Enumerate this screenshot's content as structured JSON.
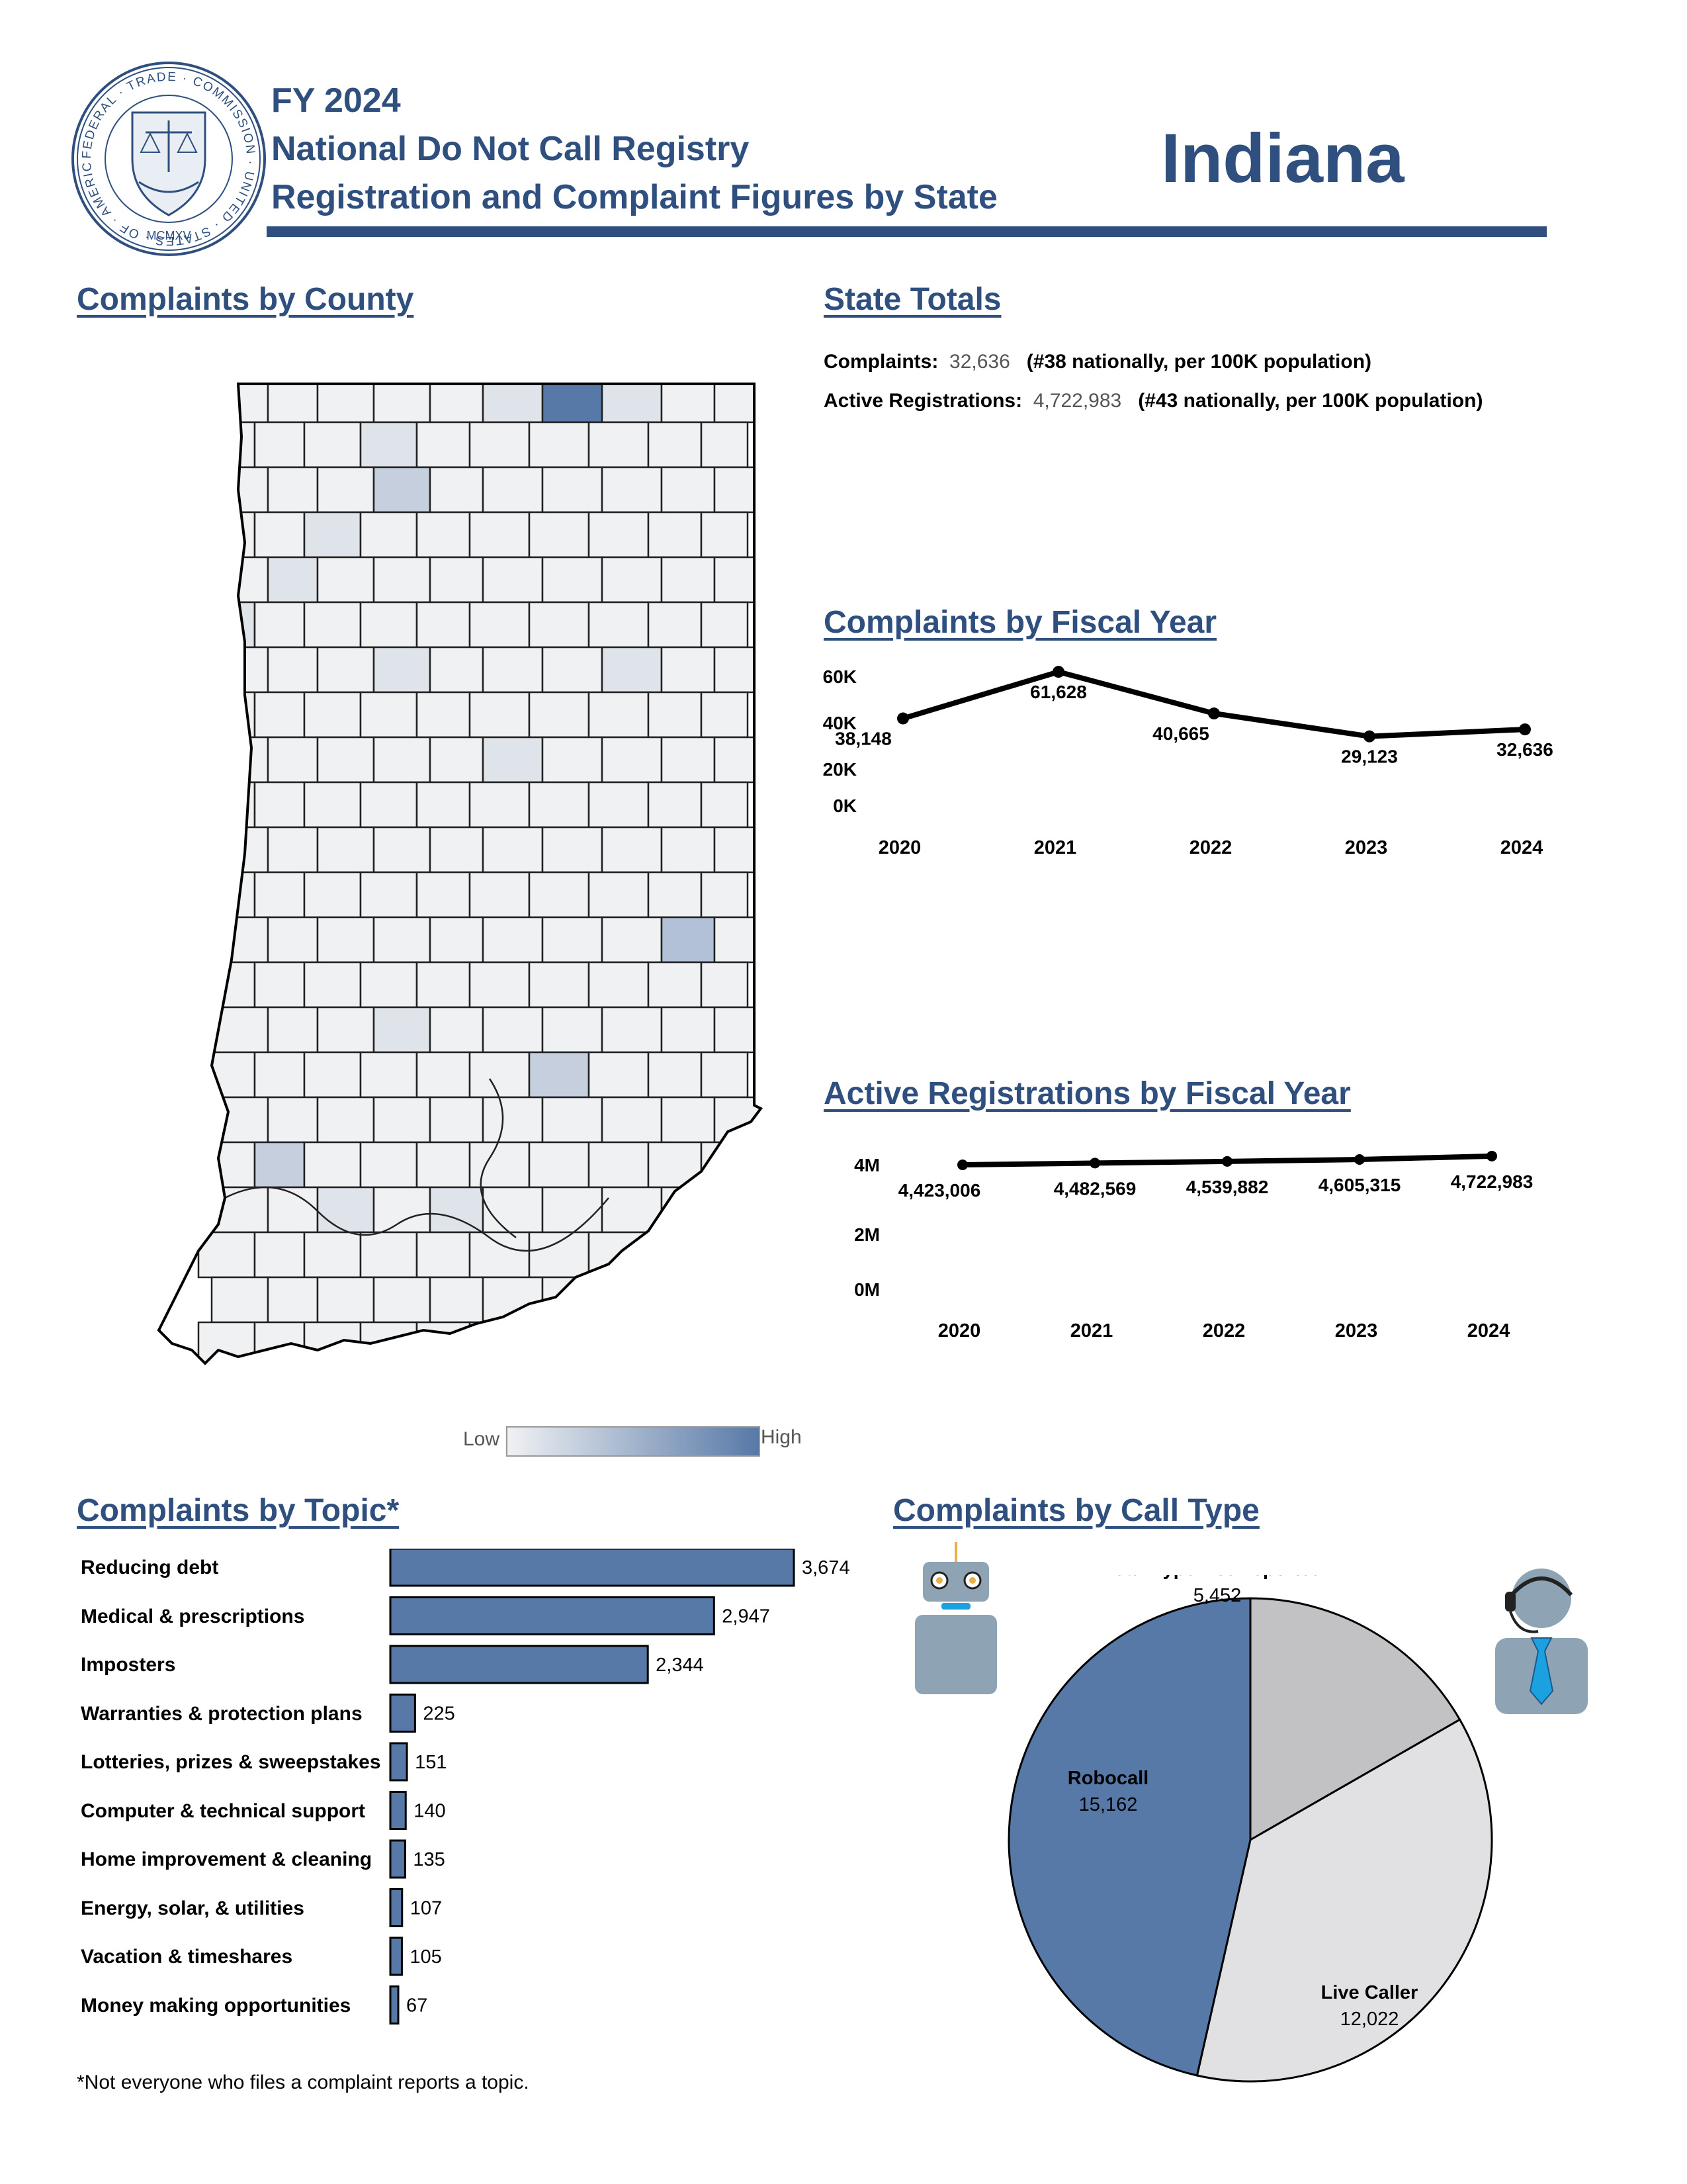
{
  "header": {
    "line1": "FY 2024",
    "line2": "National Do Not Call Registry",
    "line3": "Registration and Complaint Figures by State",
    "state": "Indiana"
  },
  "seal": {
    "ring_text": "FEDERAL · TRADE · COMMISSION · UNITED · STATES · OF · AMERICA ·",
    "year": "MCMXV"
  },
  "colors": {
    "navy": "#2f4f7f",
    "bar": "#5779a7",
    "low": "#f0f1f3",
    "high": "#5779a7",
    "gray_slice": "#c2c2c4",
    "light_slice": "#e1e1e3"
  },
  "sections": {
    "county": "Complaints by County",
    "totals": "State Totals",
    "fiscal": "Complaints by Fiscal Year",
    "registrations": "Active Registrations by Fiscal Year",
    "topic": "Complaints by Topic",
    "topic_mark": "*",
    "calltype": "Complaints by Call Type"
  },
  "totals": {
    "complaints_label": "Complaints:",
    "complaints_value": "32,636",
    "complaints_rank": "(#38 nationally, per 100K population)",
    "registrations_label": "Active Registrations:",
    "registrations_value": "4,722,983",
    "registrations_rank": "(#43 nationally, per 100K population)"
  },
  "legend": {
    "low": "Low",
    "high": "High"
  },
  "icons": {
    "robot": "robot-icon",
    "agent": "call-center-agent-icon",
    "seal": "ftc-seal-icon"
  },
  "footnote": "*Not everyone who files a complaint reports a topic.",
  "chart_data": [
    {
      "type": "line",
      "title": "Complaints by Fiscal Year",
      "x": [
        "2020",
        "2021",
        "2022",
        "2023",
        "2024"
      ],
      "values": [
        38148,
        61628,
        40665,
        29123,
        32636
      ],
      "value_labels": [
        "38,148",
        "61,628",
        "40,665",
        "29,123",
        "32,636"
      ],
      "yticks": [
        "60K",
        "40K",
        "20K",
        "0K"
      ],
      "ylim": [
        0,
        60000
      ]
    },
    {
      "type": "line",
      "title": "Active Registrations by Fiscal Year",
      "x": [
        "2020",
        "2021",
        "2022",
        "2023",
        "2024"
      ],
      "values": [
        4423006,
        4482569,
        4539882,
        4605315,
        4722983
      ],
      "value_labels": [
        "4,423,006",
        "4,482,569",
        "4,539,882",
        "4,605,315",
        "4,722,983"
      ],
      "yticks": [
        "4M",
        "2M",
        "0M"
      ],
      "ylim": [
        0,
        4000000
      ]
    },
    {
      "type": "bar",
      "orientation": "horizontal",
      "title": "Complaints by Topic",
      "categories": [
        "Reducing debt",
        "Medical & prescriptions",
        "Imposters",
        "Warranties & protection plans",
        "Lotteries, prizes & sweepstakes",
        "Computer & technical support",
        "Home improvement & cleaning",
        "Energy, solar, & utilities",
        "Vacation & timeshares",
        "Money making opportunities"
      ],
      "values": [
        3674,
        2947,
        2344,
        225,
        151,
        140,
        135,
        107,
        105,
        67
      ],
      "value_labels": [
        "3,674",
        "2,947",
        "2,344",
        "225",
        "151",
        "140",
        "135",
        "107",
        "105",
        "67"
      ]
    },
    {
      "type": "pie",
      "title": "Complaints by Call Type",
      "slices": [
        {
          "name": "Call Type Not Reported",
          "value": 5452,
          "label": "5,452",
          "color": "#c2c2c4"
        },
        {
          "name": "Live Caller",
          "value": 12022,
          "label": "12,022",
          "color": "#e1e1e3"
        },
        {
          "name": "Robocall",
          "value": 15162,
          "label": "15,162",
          "color": "#5779a7"
        }
      ]
    },
    {
      "type": "heatmap",
      "title": "Complaints by County",
      "legend": [
        "Low",
        "High"
      ]
    }
  ]
}
